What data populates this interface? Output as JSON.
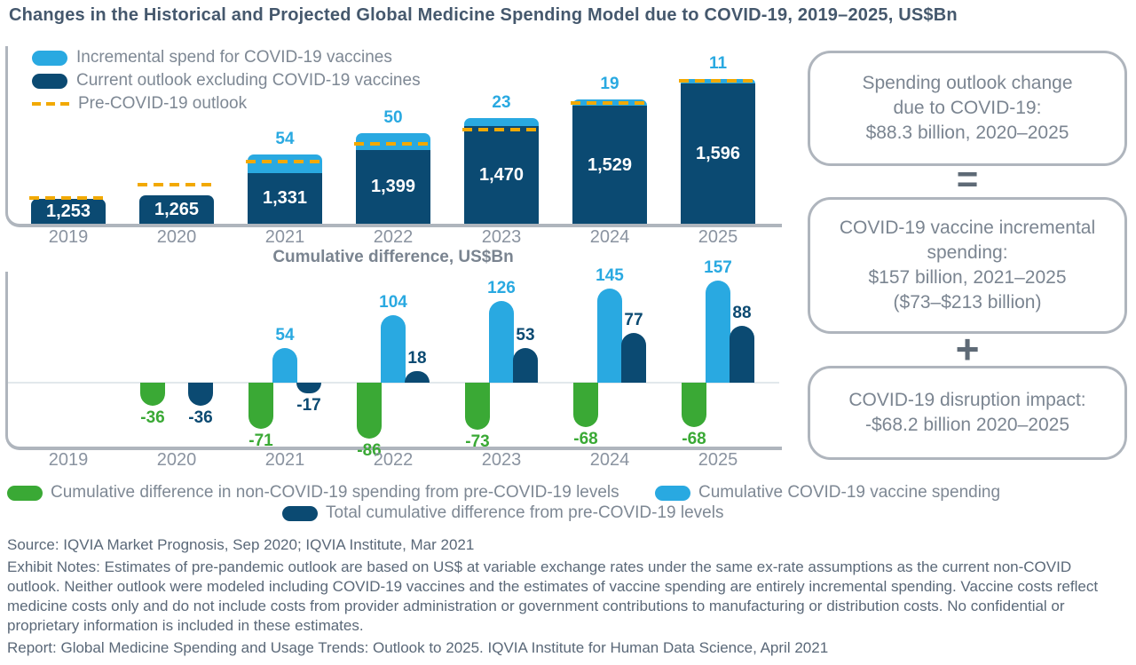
{
  "title": "Changes in the Historical and Projected Global Medicine Spending Model due to COVID-19, 2019–2025, US$Bn",
  "colors": {
    "light_blue": "#29A9E1",
    "dark_blue": "#0B4A72",
    "green": "#3AA935",
    "yellow": "#F2A900",
    "gray_text": "#7E8894",
    "axis_gray": "#AFB5BD",
    "title_color": "#45586D",
    "white": "#FFFFFF"
  },
  "chart_data": [
    {
      "type": "bar",
      "name": "global-medicine-spending",
      "title": "",
      "categories": [
        "2019",
        "2020",
        "2021",
        "2022",
        "2023",
        "2024",
        "2025"
      ],
      "ylim": [
        1180,
        1620
      ],
      "grid": false,
      "legend_position": "top-left",
      "series": [
        {
          "name": "Current outlook excluding COVID-19 vaccines",
          "values": [
            1253,
            1265,
            1331,
            1399,
            1470,
            1529,
            1596
          ],
          "labels": [
            "1,253",
            "1,265",
            "1,331",
            "1,399",
            "1,470",
            "1,529",
            "1,596"
          ]
        },
        {
          "name": "Incremental spend for COVID-19 vaccines",
          "values": [
            null,
            null,
            54,
            50,
            23,
            19,
            11
          ]
        },
        {
          "name": "Pre-COVID-19 outlook",
          "style": "dashed-line",
          "values": [
            1256,
            1296,
            1364,
            1417,
            1460,
            1537,
            1603
          ]
        }
      ]
    },
    {
      "type": "bar",
      "name": "cumulative-difference",
      "title": "Cumulative difference, US$Bn",
      "categories": [
        "2019",
        "2020",
        "2021",
        "2022",
        "2023",
        "2024",
        "2025"
      ],
      "ylim": [
        -100,
        170
      ],
      "grid": false,
      "legend_position": "bottom",
      "series": [
        {
          "name": "Cumulative difference in non-COVID-19 spending from pre-COVID-19 levels",
          "values": [
            null,
            -36,
            -71,
            -86,
            -73,
            -68,
            -68
          ]
        },
        {
          "name": "Cumulative COVID-19 vaccine spending",
          "values": [
            null,
            null,
            54,
            104,
            126,
            145,
            157
          ]
        },
        {
          "name": "Total cumulative difference from pre-COVID-19 levels",
          "values": [
            null,
            -36,
            -17,
            18,
            53,
            77,
            88
          ]
        }
      ]
    }
  ],
  "legend_top": [
    {
      "label": "Incremental spend for COVID-19 vaccines",
      "swatch": "light_blue"
    },
    {
      "label": "Current outlook excluding COVID-19 vaccines",
      "swatch": "dark_blue"
    },
    {
      "label": "Pre-COVID-19 outlook",
      "swatch": "dashed_yellow"
    }
  ],
  "legend_bottom": [
    {
      "label": "Cumulative difference in non-COVID-19 spending from pre-COVID-19 levels",
      "swatch": "green"
    },
    {
      "label": "Cumulative COVID-19 vaccine spending",
      "swatch": "light_blue"
    },
    {
      "label": "Total cumulative difference from pre-COVID-19 levels",
      "swatch": "dark_blue"
    }
  ],
  "side_panel": {
    "operators": [
      "=",
      "+"
    ],
    "boxes": [
      {
        "lines": [
          "Spending outlook change",
          "due to COVID-19:",
          "$88.3 billion, 2020–2025"
        ]
      },
      {
        "lines": [
          "COVID-19 vaccine incremental",
          "spending:",
          "$157 billion, 2021–2025",
          "($73–$213 billion)"
        ]
      },
      {
        "lines": [
          "COVID-19 disruption impact:",
          "-$68.2 billion 2020–2025"
        ]
      }
    ]
  },
  "footer": {
    "source": "Source: IQVIA Market Prognosis, Sep 2020; IQVIA Institute, Mar 2021",
    "notes": "Exhibit Notes: Estimates of pre-pandemic outlook are based on US$ at variable exchange rates under the same ex-rate assumptions as the current non-COVID outlook. Neither outlook were modeled including COVID-19 vaccines and the estimates of vaccine spending are entirely incremental spending. Vaccine costs reflect medicine costs only and do not include costs from provider administration or government contributions to manufacturing or distribution costs. No confidential or proprietary information is included in these estimates.",
    "report": "Report: Global Medicine Spending and Usage Trends: Outlook to 2025. IQVIA Institute for Human Data Science, April 2021"
  }
}
